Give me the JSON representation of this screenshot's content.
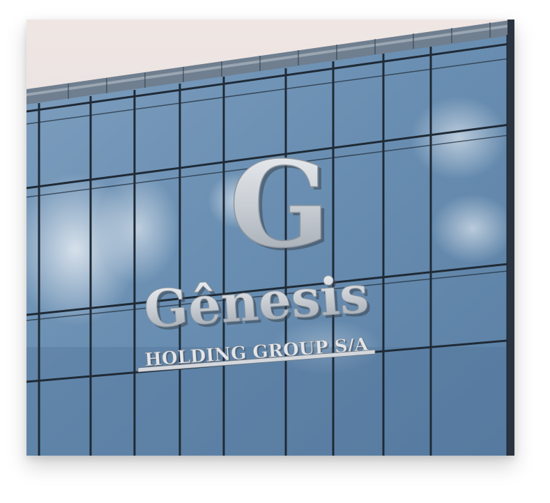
{
  "photo": {
    "subject": "glass-office-building-facade",
    "sky_color": "#e9e4e2",
    "glass_color": "#6f93b5",
    "mullion_color": "#1f2a36"
  },
  "signage": {
    "monogram": "G",
    "name": "Gênesis",
    "tagline": "HOLDING GROUP S/A",
    "letter_color": "#d7dbe0",
    "letter_shadow": "#3c4650"
  }
}
